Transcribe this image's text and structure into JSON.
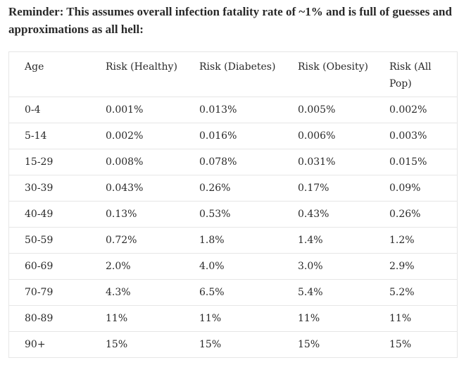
{
  "reminder": "Reminder: This assumes overall infection fatality rate of ~1% and is full of guesses and approximations as all hell:",
  "table": {
    "headers": {
      "age": "Age",
      "healthy": "Risk (Healthy)",
      "diabetes": "Risk (Diabetes)",
      "obesity": "Risk (Obesity)",
      "all_pop": "Risk (All Pop)"
    },
    "rows": [
      {
        "age": "0-4",
        "healthy": "0.001%",
        "diabetes": "0.013%",
        "obesity": "0.005%",
        "all_pop": "0.002%"
      },
      {
        "age": "5-14",
        "healthy": "0.002%",
        "diabetes": "0.016%",
        "obesity": "0.006%",
        "all_pop": "0.003%"
      },
      {
        "age": "15-29",
        "healthy": "0.008%",
        "diabetes": "0.078%",
        "obesity": "0.031%",
        "all_pop": "0.015%"
      },
      {
        "age": "30-39",
        "healthy": "0.043%",
        "diabetes": "0.26%",
        "obesity": "0.17%",
        "all_pop": "0.09%"
      },
      {
        "age": "40-49",
        "healthy": "0.13%",
        "diabetes": "0.53%",
        "obesity": "0.43%",
        "all_pop": "0.26%"
      },
      {
        "age": "50-59",
        "healthy": "0.72%",
        "diabetes": "1.8%",
        "obesity": "1.4%",
        "all_pop": "1.2%"
      },
      {
        "age": "60-69",
        "healthy": "2.0%",
        "diabetes": "4.0%",
        "obesity": "3.0%",
        "all_pop": "2.9%"
      },
      {
        "age": "70-79",
        "healthy": "4.3%",
        "diabetes": "6.5%",
        "obesity": "5.4%",
        "all_pop": "5.2%"
      },
      {
        "age": "80-89",
        "healthy": "11%",
        "diabetes": "11%",
        "obesity": "11%",
        "all_pop": "11%"
      },
      {
        "age": "90+",
        "healthy": "15%",
        "diabetes": "15%",
        "obesity": "15%",
        "all_pop": "15%"
      }
    ]
  }
}
